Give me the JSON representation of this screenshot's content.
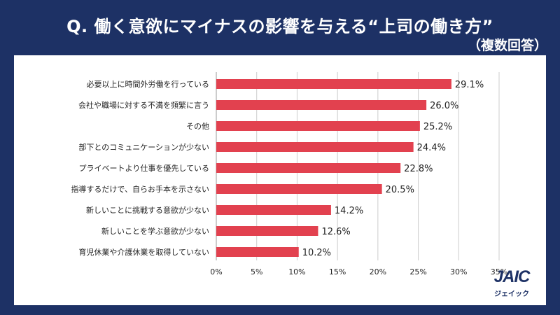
{
  "header": {
    "title": "Q. 働く意欲にマイナスの影響を与える“上司の働き方”",
    "subtitle": "（複数回答）"
  },
  "logo": {
    "text": "JAIC",
    "sub": "ジェイック"
  },
  "colors": {
    "background": "#1d3165",
    "bar": "#e2414f",
    "panel": "#ffffff",
    "grid": "#cccccc"
  },
  "chart_data": {
    "type": "bar",
    "orientation": "horizontal",
    "categories": [
      "必要以上に時間外労働を行っている",
      "会社や職場に対する不満を頻繁に言う",
      "その他",
      "部下とのコミュニケーションが少ない",
      "プライベートより仕事を優先している",
      "指導するだけで、自らお手本を示さない",
      "新しいことに挑戦する意欲が少ない",
      "新しいことを学ぶ意欲が少ない",
      "育児休業や介護休業を取得していない"
    ],
    "values": [
      29.1,
      26.0,
      25.2,
      24.4,
      22.8,
      20.5,
      14.2,
      12.6,
      10.2
    ],
    "data_labels": [
      "29.1%",
      "26.0%",
      "25.2%",
      "24.4%",
      "22.8%",
      "20.5%",
      "14.2%",
      "12.6%",
      "10.2%"
    ],
    "xlim": [
      0,
      35
    ],
    "x_ticks": [
      0,
      5,
      10,
      15,
      20,
      25,
      30,
      35
    ],
    "x_tick_labels": [
      "0%",
      "5%",
      "10%",
      "15%",
      "20%",
      "25%",
      "30%",
      "35%"
    ],
    "grid": true,
    "legend": "none"
  }
}
